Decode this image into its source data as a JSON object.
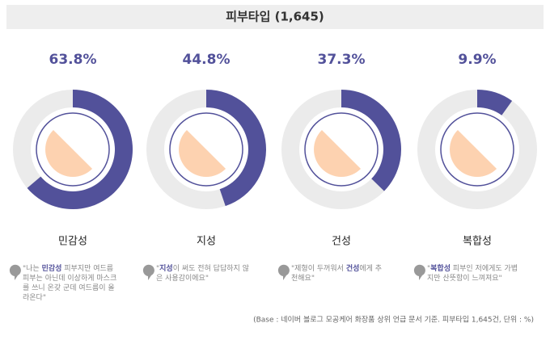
{
  "chart_data": {
    "type": "donut",
    "title": "피부타입 (1,645)",
    "categories": [
      "민감성",
      "지성",
      "건성",
      "복합성"
    ],
    "values": [
      63.8,
      44.8,
      37.3,
      9.9
    ],
    "value_labels": [
      "63.8%",
      "44.8%",
      "37.3%",
      "9.9%"
    ],
    "color": "#52519a",
    "track_color": "#ebebeb"
  },
  "quotes": [
    [
      "\"나는 ",
      "민감성",
      " 피부지만 여드름 피부는 아닌데 이상하게 마스크를 쓰니 온갖 군데 여드름이 올라온다\""
    ],
    [
      "\"",
      "지성",
      "이 써도 전혀 답답하지 않은 사용감이에요\""
    ],
    [
      "\"제형이 두꺼워서 ",
      "건성",
      "에게 추천해요\""
    ],
    [
      "\"",
      "복합성",
      " 피부인 저에게도 가볍지만 산뜻함이 느껴져요\""
    ]
  ],
  "note": "(Base : 네이버 블로그 모공케어 화장품 상위 언급 문서 기준. 피부타입 1,645건, 단위 : %)"
}
